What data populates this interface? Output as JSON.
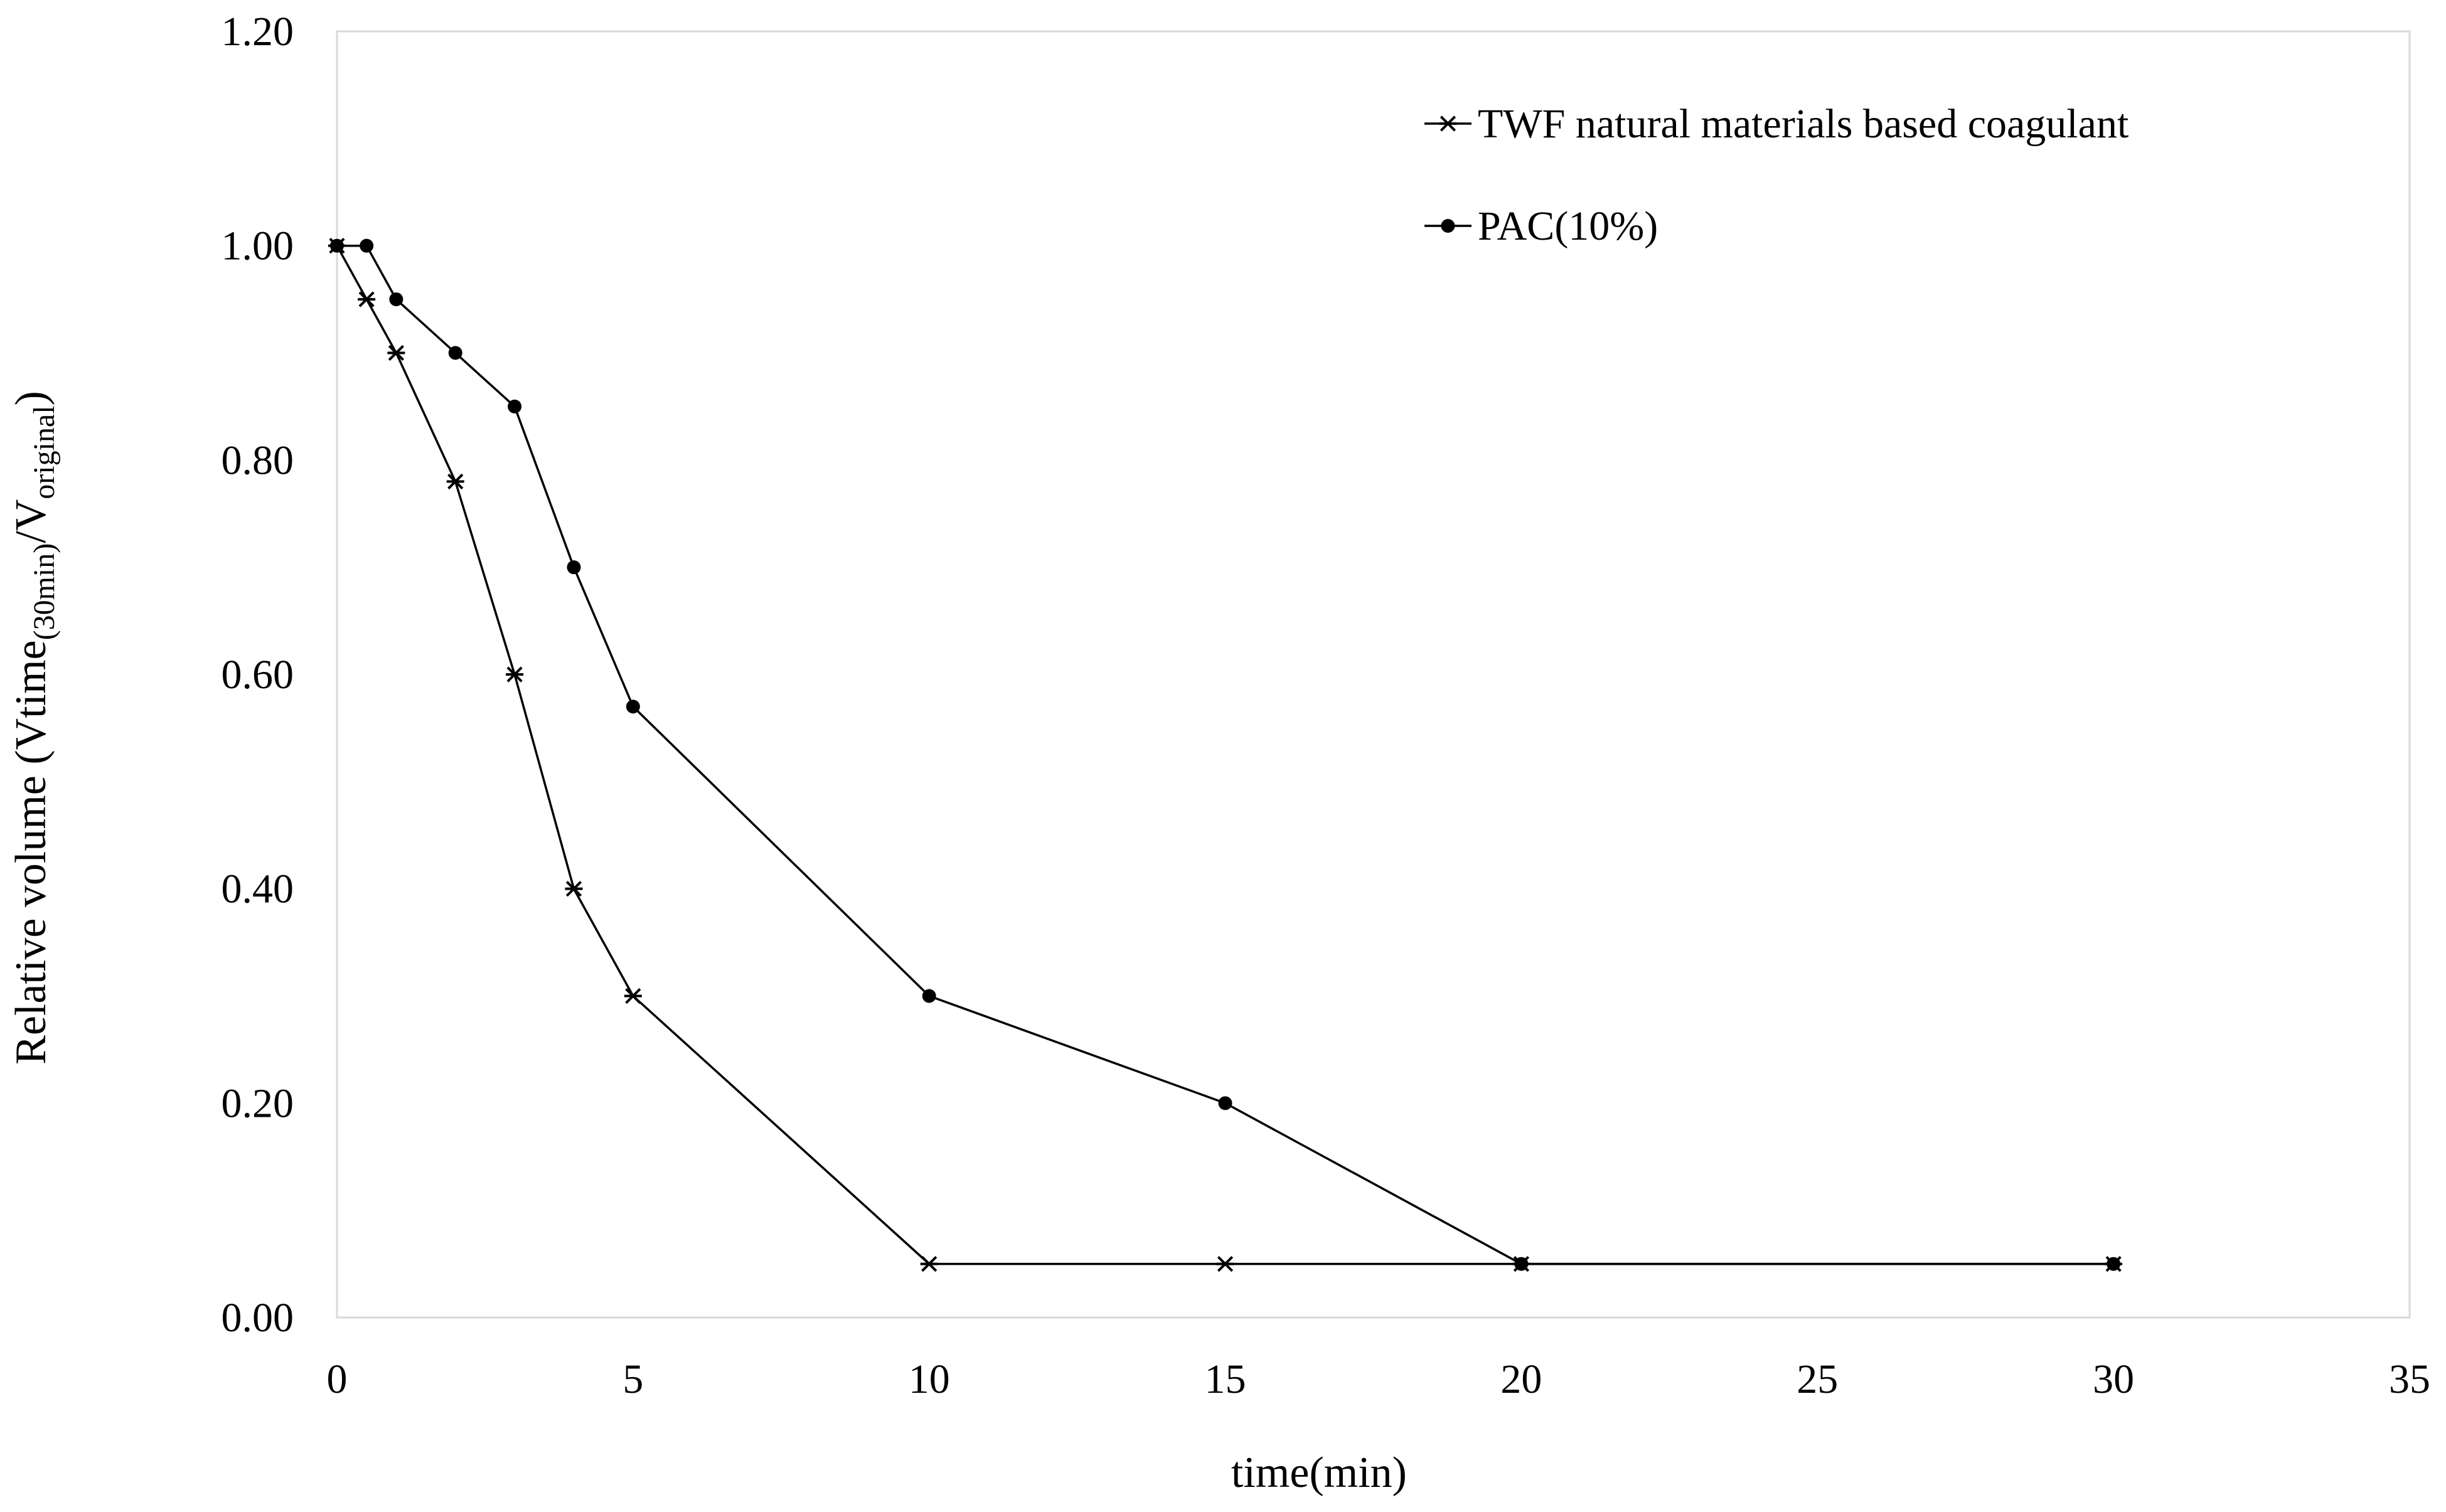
{
  "chart_data": {
    "type": "line",
    "title": "",
    "xlabel": "time(min)",
    "ylabel": {
      "prefix": "Relative volume (Vtime",
      "sub1": "(30min)",
      "middle": "/V",
      "sub2": "original",
      "suffix": ")"
    },
    "xlim": [
      0,
      35
    ],
    "ylim": [
      0,
      1.2
    ],
    "x_ticks": [
      0,
      5,
      10,
      15,
      20,
      25,
      30,
      35
    ],
    "x_tick_labels": [
      "0",
      "5",
      "10",
      "15",
      "20",
      "25",
      "30",
      "35"
    ],
    "y_ticks": [
      0,
      0.2,
      0.4,
      0.6,
      0.8,
      1.0,
      1.2
    ],
    "y_tick_labels": [
      "0.00",
      "0.20",
      "0.40",
      "0.60",
      "0.80",
      "1.00",
      "1.20"
    ],
    "grid": false,
    "legend_position": "top-right",
    "series": [
      {
        "name": "TWF natural materials based coagulant",
        "marker": "asterisk",
        "color": "#000000",
        "x": [
          0,
          0.5,
          1,
          2,
          3,
          4,
          5,
          10,
          15,
          20,
          30
        ],
        "y": [
          1.0,
          0.95,
          0.9,
          0.78,
          0.6,
          0.4,
          0.3,
          0.05,
          0.05,
          0.05,
          0.05
        ]
      },
      {
        "name": "PAC(10%)",
        "marker": "dot",
        "color": "#000000",
        "x": [
          0,
          0.5,
          1,
          2,
          3,
          4,
          5,
          10,
          15,
          20,
          30
        ],
        "y": [
          1.0,
          1.0,
          0.95,
          0.9,
          0.85,
          0.7,
          0.57,
          0.3,
          0.2,
          0.05,
          0.05
        ]
      }
    ]
  }
}
